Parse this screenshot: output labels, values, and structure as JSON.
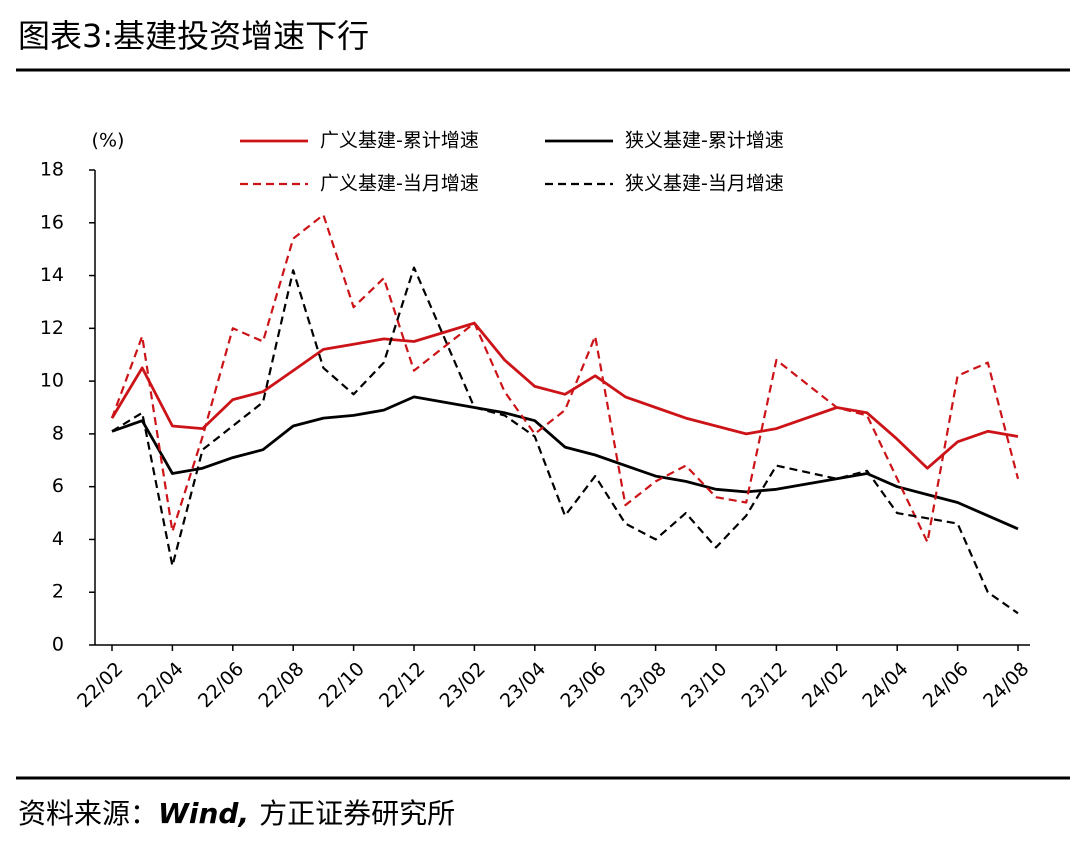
{
  "chart_data": {
    "type": "line",
    "title": "图表3:基建投资增速下行",
    "y_label": "(%)",
    "source": {
      "prefix": "资料来源：",
      "name": "Wind,",
      "rest": "方正证券研究所"
    },
    "x": [
      "22/02",
      "22/03",
      "22/04",
      "22/05",
      "22/06",
      "22/07",
      "22/08",
      "22/09",
      "22/10",
      "22/11",
      "22/12",
      "23/02",
      "23/03",
      "23/04",
      "23/05",
      "23/06",
      "23/07",
      "23/08",
      "23/09",
      "23/10",
      "23/11",
      "23/12",
      "24/02",
      "24/03",
      "24/04",
      "24/05",
      "24/06",
      "24/07",
      "24/08"
    ],
    "xticks": [
      "22/02",
      "22/04",
      "22/06",
      "22/08",
      "22/10",
      "22/12",
      "23/02",
      "23/04",
      "23/06",
      "23/08",
      "23/10",
      "23/12",
      "24/02",
      "24/04",
      "24/06",
      "24/08"
    ],
    "ylim": [
      0,
      18
    ],
    "yticks": [
      0,
      2,
      4,
      6,
      8,
      10,
      12,
      14,
      16,
      18
    ],
    "grid": false,
    "series": [
      {
        "name": "广义基建-累计增速",
        "color": "#cc1418",
        "dashed": false,
        "values": [
          8.6,
          10.5,
          8.3,
          8.2,
          9.3,
          9.6,
          10.4,
          11.2,
          11.4,
          11.6,
          11.5,
          12.2,
          10.8,
          9.8,
          9.5,
          10.2,
          9.4,
          9.0,
          8.6,
          8.3,
          8.0,
          8.2,
          9.0,
          8.8,
          7.8,
          6.7,
          7.7,
          8.1,
          7.9
        ]
      },
      {
        "name": "狭义基建-累计增速",
        "color": "#000000",
        "dashed": false,
        "values": [
          8.1,
          8.5,
          6.5,
          6.7,
          7.1,
          7.4,
          8.3,
          8.6,
          8.7,
          8.9,
          9.4,
          9.0,
          8.8,
          8.5,
          7.5,
          7.2,
          6.8,
          6.4,
          6.2,
          5.9,
          5.8,
          5.9,
          6.3,
          6.5,
          6.0,
          5.7,
          5.4,
          4.9,
          4.4
        ]
      },
      {
        "name": "广义基建-当月增速",
        "color": "#cc1418",
        "dashed": true,
        "values": [
          8.6,
          11.7,
          4.3,
          7.9,
          12.0,
          11.5,
          15.4,
          16.3,
          12.8,
          13.9,
          10.4,
          12.2,
          9.6,
          8.0,
          8.9,
          11.7,
          5.3,
          6.2,
          6.8,
          5.6,
          5.4,
          10.8,
          9.0,
          8.7,
          6.3,
          3.9,
          10.2,
          10.7,
          6.3
        ]
      },
      {
        "name": "狭义基建-当月增速",
        "color": "#000000",
        "dashed": true,
        "values": [
          8.1,
          8.8,
          3.0,
          7.4,
          8.3,
          9.2,
          14.2,
          10.5,
          9.5,
          10.7,
          14.3,
          9.0,
          8.7,
          7.9,
          4.9,
          6.4,
          4.6,
          4.0,
          5.0,
          3.7,
          4.9,
          6.8,
          6.3,
          6.6,
          5.0,
          4.8,
          4.6,
          2.0,
          1.2
        ]
      }
    ]
  }
}
